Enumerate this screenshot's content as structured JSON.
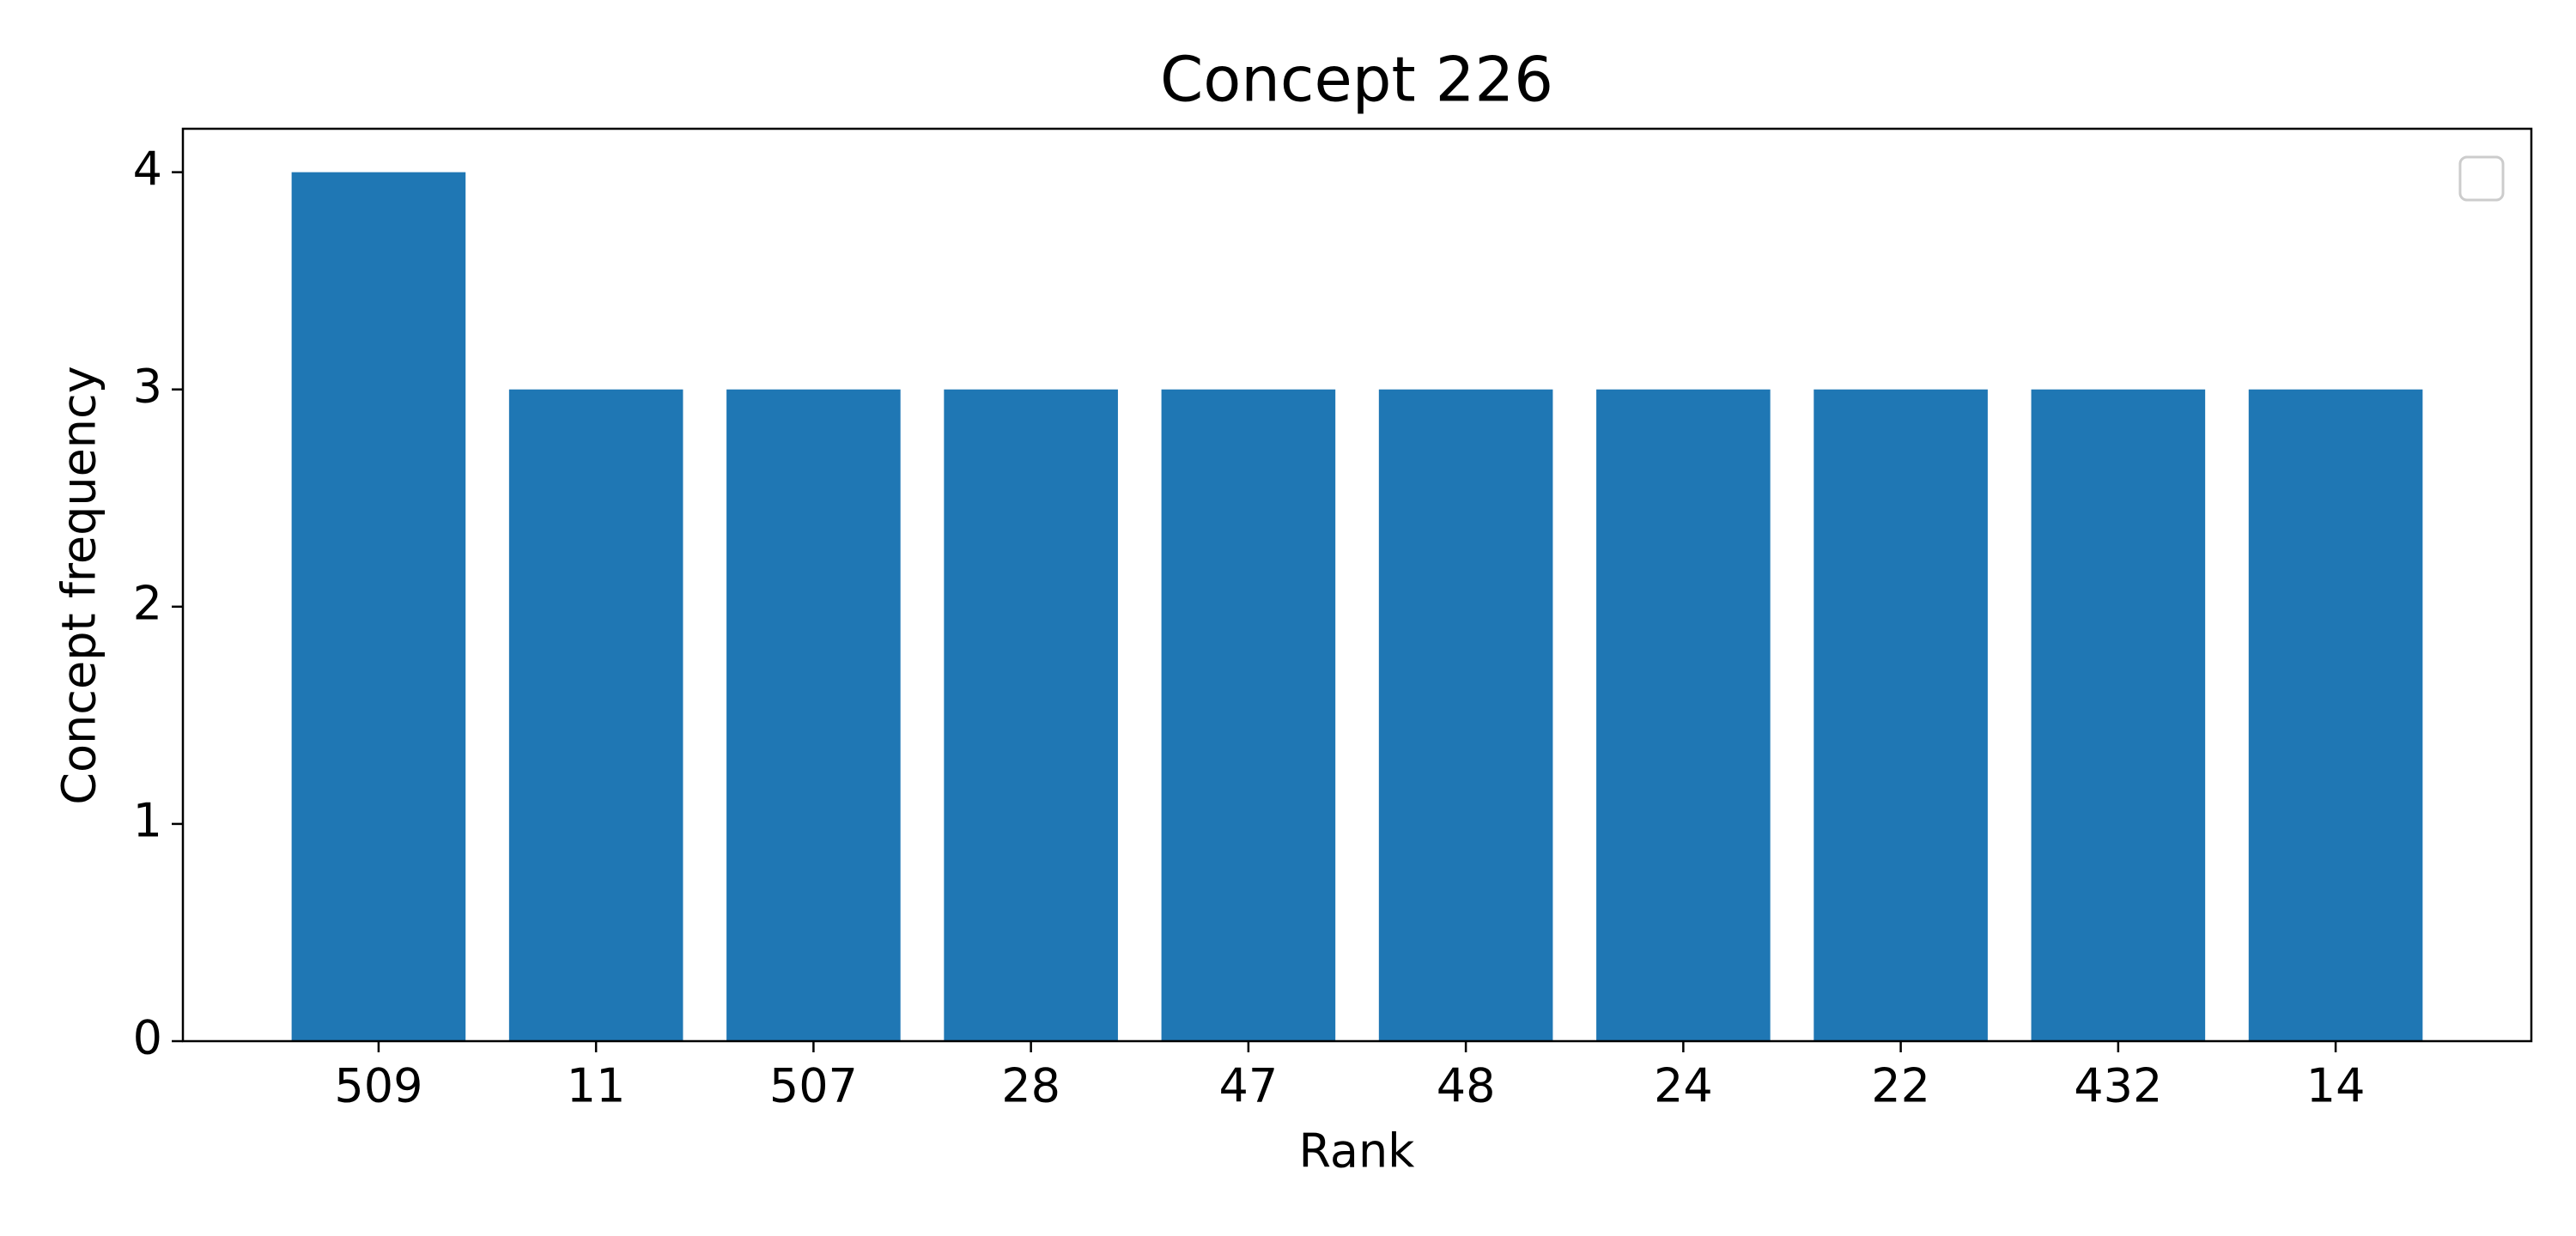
{
  "chart_data": {
    "type": "bar",
    "title": "Concept 226",
    "x_label": "Rank",
    "y_label": "Concept frequency",
    "categories": [
      "509",
      "11",
      "507",
      "28",
      "47",
      "48",
      "24",
      "22",
      "432",
      "14"
    ],
    "values": [
      4,
      3,
      3,
      3,
      3,
      3,
      3,
      3,
      3,
      3
    ],
    "color": "#1f77b4",
    "ylim": [
      0,
      4.2
    ],
    "yticks": [
      0,
      1,
      2,
      3,
      4
    ],
    "grid": false
  }
}
